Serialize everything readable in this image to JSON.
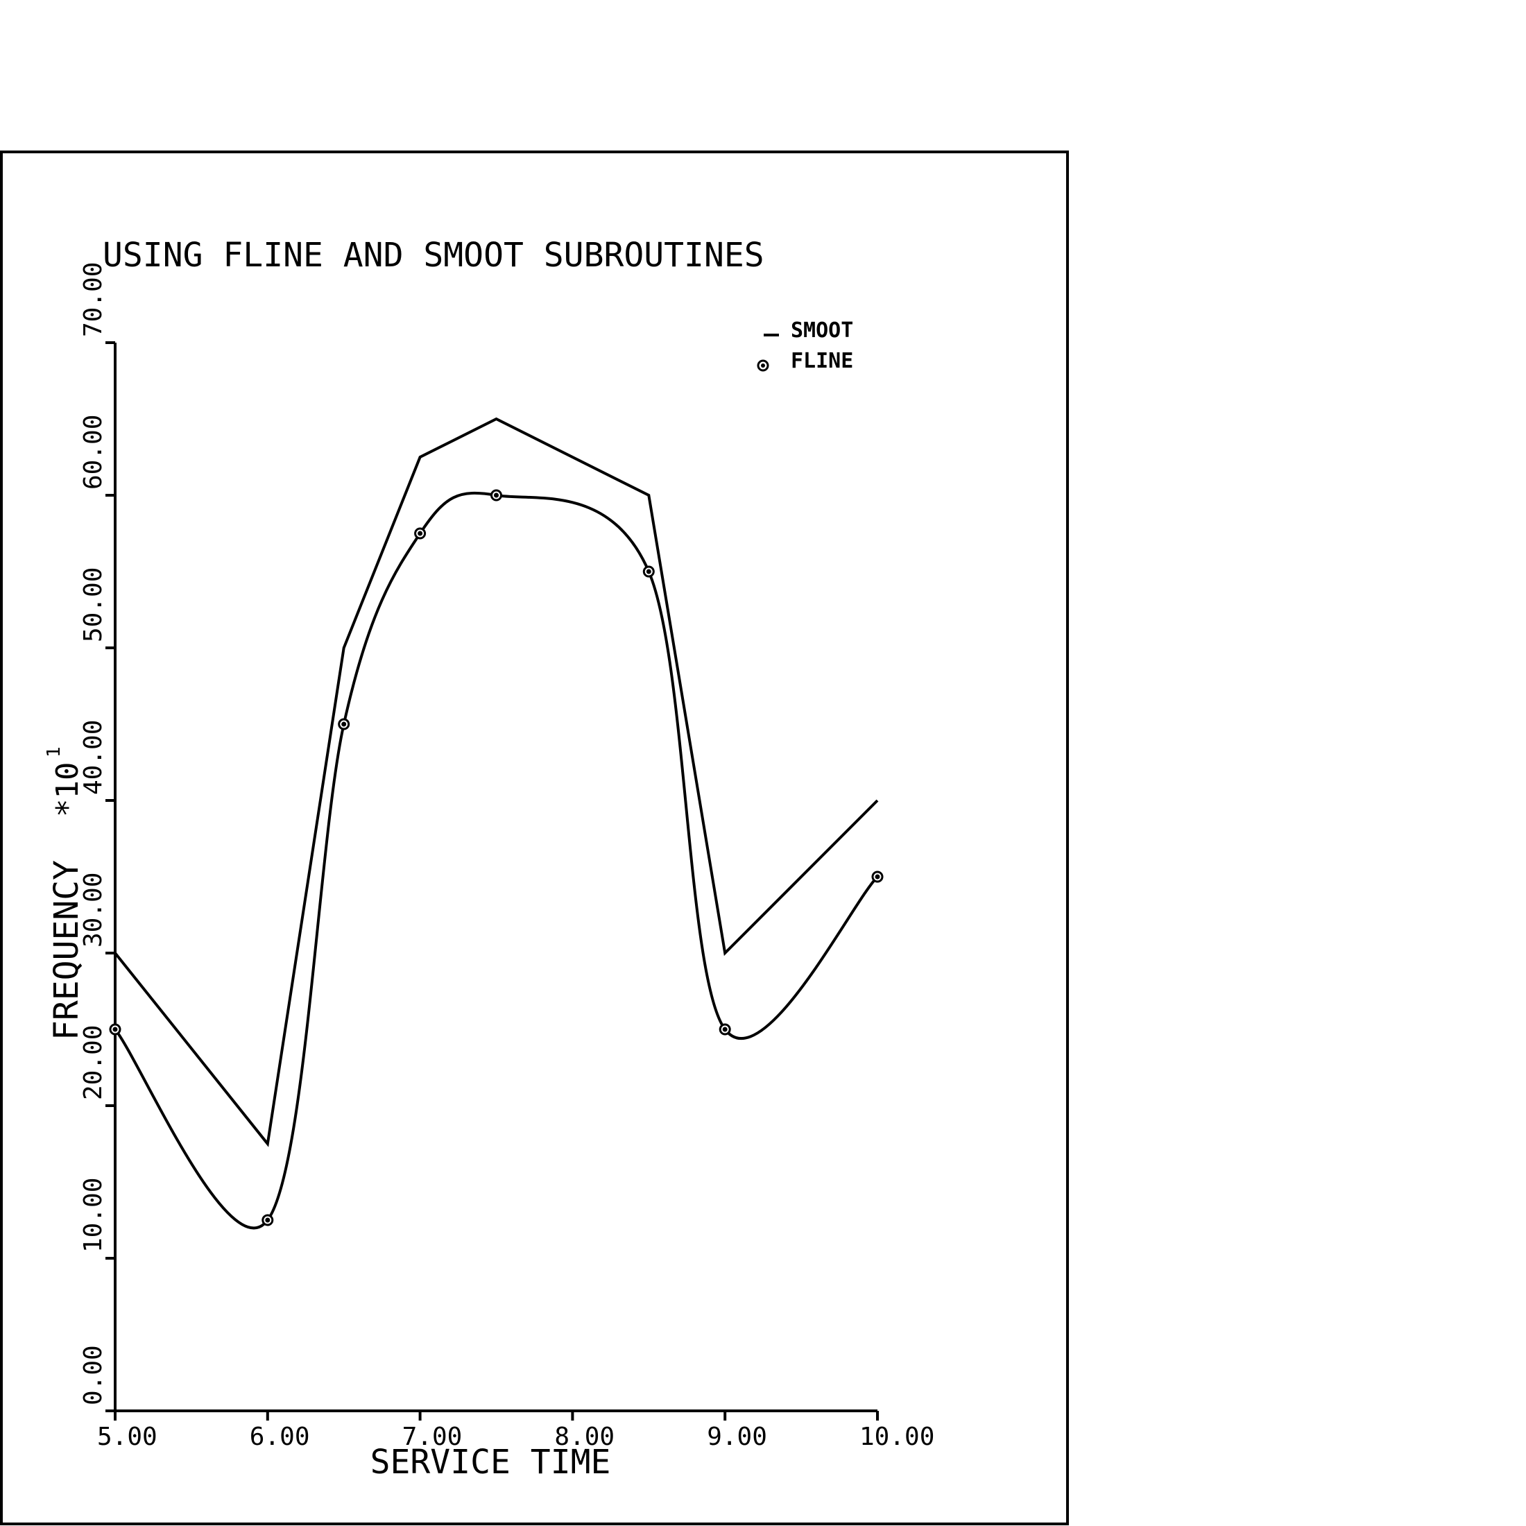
{
  "chart_data": {
    "type": "line",
    "title": "USING FLINE AND SMOOT SUBROUTINES",
    "xlabel": "SERVICE TIME",
    "ylabel": "FREQUENCY",
    "ylabel_scale": "*10",
    "ylabel_scale_exp": "1",
    "xlim": [
      5,
      10
    ],
    "ylim": [
      0,
      70
    ],
    "x_ticks": [
      5,
      6,
      7,
      8,
      9,
      10
    ],
    "y_ticks": [
      0,
      10,
      20,
      30,
      40,
      50,
      60,
      70
    ],
    "x_tick_labels": [
      "5.00",
      "6.00",
      "7.00",
      "8.00",
      "9.00",
      "10.00"
    ],
    "y_tick_labels": [
      "0.00",
      "10.00",
      "20.00",
      "30.00",
      "40.00",
      "50.00",
      "60.00",
      "70.00"
    ],
    "grid": false,
    "legend_position": "top-right",
    "series": [
      {
        "name": "SMOOT",
        "style": "line",
        "points": [
          [
            5,
            30
          ],
          [
            6,
            17.5
          ],
          [
            6.5,
            50
          ],
          [
            7,
            62.5
          ],
          [
            7.5,
            65
          ],
          [
            8.5,
            60
          ],
          [
            9,
            30
          ],
          [
            10,
            40
          ]
        ]
      },
      {
        "name": "FLINE",
        "style": "smooth-line-with-markers",
        "points": [
          [
            5,
            25
          ],
          [
            6,
            12.5
          ],
          [
            6.5,
            45
          ],
          [
            7,
            57.5
          ],
          [
            7.5,
            60
          ],
          [
            8.5,
            55
          ],
          [
            9,
            25
          ],
          [
            10,
            35
          ]
        ]
      }
    ],
    "colors": {
      "line": "#000000",
      "background": "#ffffff"
    }
  }
}
